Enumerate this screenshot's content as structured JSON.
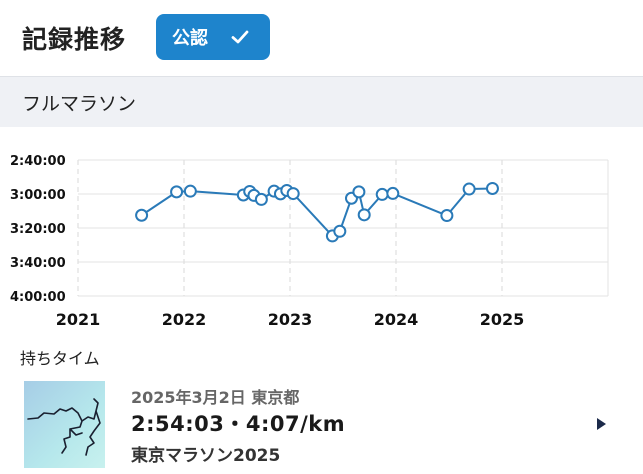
{
  "header": {
    "title": "記録推移",
    "badge_label": "公認"
  },
  "section": {
    "title": "フルマラソン"
  },
  "chart_data": {
    "type": "line",
    "title": "",
    "xlabel": "",
    "ylabel": "",
    "x_axis": {
      "ticks": [
        "2021",
        "2022",
        "2023",
        "2024",
        "2025"
      ],
      "range": [
        2021,
        2026
      ]
    },
    "y_axis": {
      "ticks": [
        "2:40:00",
        "3:00:00",
        "3:20:00",
        "3:40:00",
        "4:00:00"
      ],
      "range": [
        "2:40:00",
        "4:00:00"
      ],
      "inverted": true
    },
    "grid": true,
    "series": [
      {
        "color": "#2a7ab8",
        "points": [
          {
            "x": 2021.6,
            "y": "3:12:30"
          },
          {
            "x": 2021.93,
            "y": "2:58:45"
          },
          {
            "x": 2022.06,
            "y": "2:58:20"
          },
          {
            "x": 2022.56,
            "y": "3:00:35"
          },
          {
            "x": 2022.62,
            "y": "2:58:30"
          },
          {
            "x": 2022.66,
            "y": "3:00:50"
          },
          {
            "x": 2022.73,
            "y": "3:03:10"
          },
          {
            "x": 2022.85,
            "y": "2:58:20"
          },
          {
            "x": 2022.91,
            "y": "2:59:55"
          },
          {
            "x": 2022.97,
            "y": "2:57:55"
          },
          {
            "x": 2023.03,
            "y": "2:59:45"
          },
          {
            "x": 2023.4,
            "y": "3:24:40"
          },
          {
            "x": 2023.47,
            "y": "3:21:55"
          },
          {
            "x": 2023.58,
            "y": "3:02:30"
          },
          {
            "x": 2023.65,
            "y": "2:58:45"
          },
          {
            "x": 2023.7,
            "y": "3:12:15"
          },
          {
            "x": 2023.87,
            "y": "3:00:15"
          },
          {
            "x": 2023.97,
            "y": "2:59:40"
          },
          {
            "x": 2024.48,
            "y": "3:12:40"
          },
          {
            "x": 2024.69,
            "y": "2:57:05"
          },
          {
            "x": 2024.91,
            "y": "2:56:45"
          }
        ]
      }
    ]
  },
  "best": {
    "label": "持ちタイム",
    "date_place": "2025年3月2日 東京都",
    "time_pace": "2:54:03・4:07/km",
    "race_name": "東京マラソン2025"
  },
  "colors": {
    "accent": "#1e84cc",
    "line": "#2a7ab8",
    "section_bg": "#eff1f5"
  },
  "icons": {
    "badge": "checkmark-icon",
    "card": "chevron-right-icon",
    "thumb": "route-map-thumbnail"
  }
}
